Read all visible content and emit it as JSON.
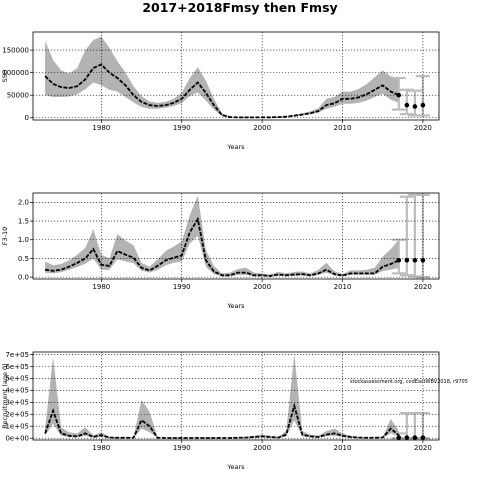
{
  "figure": {
    "title": "2017+2018Fmsy then Fmsy",
    "annotation": "stockassessment.org, codEastWBV2018, r9705"
  },
  "colors": {
    "band": "#b3b3b3",
    "line": "#000000",
    "ghost": "#bdbdbd",
    "grid": "#000000"
  },
  "chart_data": [
    {
      "id": "ssb",
      "type": "line",
      "title": "",
      "xlabel": "Years",
      "ylabel": "SSB",
      "xlim": [
        1971.5,
        2022
      ],
      "ylim": [
        -5000,
        190000
      ],
      "xticks": [
        1980,
        1990,
        2000,
        2010,
        2020
      ],
      "yticks": [
        0,
        50000,
        100000,
        150000
      ],
      "ytick_labels": [
        "0",
        "50000",
        "100000",
        "150000"
      ],
      "grid": true,
      "x": [
        1973,
        1974,
        1975,
        1976,
        1977,
        1978,
        1979,
        1980,
        1981,
        1982,
        1983,
        1984,
        1985,
        1986,
        1987,
        1988,
        1989,
        1990,
        1991,
        1992,
        1993,
        1994,
        1995,
        1996,
        1997,
        1998,
        1999,
        2000,
        2001,
        2002,
        2003,
        2004,
        2005,
        2006,
        2007,
        2008,
        2009,
        2010,
        2011,
        2012,
        2013,
        2014,
        2015,
        2016,
        2017
      ],
      "estimate": [
        92000,
        75000,
        68000,
        66000,
        70000,
        85000,
        110000,
        118000,
        100000,
        88000,
        72000,
        50000,
        35000,
        28000,
        26000,
        28000,
        33000,
        42000,
        62000,
        78000,
        55000,
        28000,
        6000,
        1500,
        800,
        800,
        800,
        800,
        900,
        1500,
        2500,
        4500,
        7000,
        10000,
        15000,
        28000,
        32000,
        42000,
        42000,
        45000,
        52000,
        62000,
        72000,
        58000,
        50000
      ],
      "lower": [
        50000,
        46000,
        46000,
        47000,
        52000,
        63000,
        78000,
        72000,
        62000,
        58000,
        46000,
        34000,
        24000,
        20000,
        20000,
        22000,
        26000,
        32000,
        48000,
        56000,
        38000,
        18000,
        3500,
        900,
        500,
        500,
        500,
        500,
        600,
        1000,
        1800,
        3200,
        5000,
        7500,
        11000,
        20000,
        24000,
        31000,
        31000,
        33000,
        38000,
        46000,
        53000,
        40000,
        33000
      ],
      "upper": [
        170000,
        128000,
        105000,
        98000,
        110000,
        150000,
        172000,
        180000,
        155000,
        125000,
        100000,
        70000,
        48000,
        36000,
        33000,
        35000,
        42000,
        55000,
        88000,
        112000,
        82000,
        42000,
        10000,
        2500,
        1200,
        1200,
        1200,
        1200,
        1300,
        2200,
        3500,
        6500,
        10000,
        14000,
        21000,
        42000,
        46000,
        58000,
        58000,
        64000,
        74000,
        90000,
        105000,
        92000,
        88000
      ],
      "projection": {
        "x": [
          2017,
          2018,
          2019,
          2020
        ],
        "estimate": [
          50000,
          28000,
          25000,
          28000
        ],
        "lower": [
          18000,
          8000,
          5000,
          5000
        ],
        "upper": [
          88000,
          62000,
          60000,
          92000
        ]
      }
    },
    {
      "id": "fbar",
      "type": "line",
      "title": "",
      "xlabel": "Years",
      "ylabel": "F3-10",
      "xlim": [
        1971.5,
        2022
      ],
      "ylim": [
        -0.05,
        2.25
      ],
      "xticks": [
        1980,
        1990,
        2000,
        2010,
        2020
      ],
      "yticks": [
        0.0,
        0.5,
        1.0,
        1.5,
        2.0
      ],
      "ytick_labels": [
        "0.0",
        "0.5",
        "1.0",
        "1.5",
        "2.0"
      ],
      "grid": true,
      "x": [
        1973,
        1974,
        1975,
        1976,
        1977,
        1978,
        1979,
        1980,
        1981,
        1982,
        1983,
        1984,
        1985,
        1986,
        1987,
        1988,
        1989,
        1990,
        1991,
        1992,
        1993,
        1994,
        1995,
        1996,
        1997,
        1998,
        1999,
        2000,
        2001,
        2002,
        2003,
        2004,
        2005,
        2006,
        2007,
        2008,
        2009,
        2010,
        2011,
        2012,
        2013,
        2014,
        2015,
        2016,
        2017
      ],
      "estimate": [
        0.2,
        0.17,
        0.2,
        0.28,
        0.38,
        0.5,
        0.75,
        0.33,
        0.3,
        0.7,
        0.6,
        0.52,
        0.25,
        0.18,
        0.3,
        0.45,
        0.52,
        0.58,
        1.2,
        1.55,
        0.45,
        0.15,
        0.05,
        0.05,
        0.12,
        0.12,
        0.05,
        0.05,
        0.03,
        0.07,
        0.05,
        0.07,
        0.08,
        0.05,
        0.1,
        0.2,
        0.08,
        0.04,
        0.1,
        0.1,
        0.1,
        0.1,
        0.28,
        0.35,
        0.45
      ],
      "lower": [
        0.12,
        0.1,
        0.13,
        0.2,
        0.27,
        0.36,
        0.5,
        0.2,
        0.2,
        0.48,
        0.42,
        0.37,
        0.17,
        0.12,
        0.2,
        0.32,
        0.38,
        0.42,
        0.9,
        1.1,
        0.28,
        0.08,
        0.02,
        0.02,
        0.06,
        0.06,
        0.02,
        0.02,
        0.01,
        0.03,
        0.02,
        0.03,
        0.04,
        0.02,
        0.06,
        0.12,
        0.04,
        0.02,
        0.06,
        0.06,
        0.06,
        0.06,
        0.16,
        0.2,
        0.25
      ],
      "upper": [
        0.42,
        0.32,
        0.35,
        0.45,
        0.6,
        0.78,
        1.28,
        0.6,
        0.5,
        1.15,
        0.98,
        0.85,
        0.38,
        0.28,
        0.48,
        0.7,
        0.82,
        0.95,
        1.65,
        2.18,
        0.72,
        0.3,
        0.1,
        0.12,
        0.22,
        0.25,
        0.12,
        0.1,
        0.07,
        0.14,
        0.1,
        0.14,
        0.15,
        0.1,
        0.2,
        0.38,
        0.16,
        0.08,
        0.18,
        0.18,
        0.2,
        0.25,
        0.55,
        0.75,
        1.0
      ],
      "projection": {
        "x": [
          2017,
          2018,
          2019,
          2020
        ],
        "estimate": [
          0.45,
          0.45,
          0.45,
          0.45
        ],
        "lower": [
          0.1,
          0.05,
          0.02,
          0.0
        ],
        "upper": [
          1.0,
          2.15,
          2.2,
          2.2
        ]
      }
    },
    {
      "id": "recruitment",
      "type": "line",
      "title": "",
      "xlabel": "Years",
      "ylabel": "Recruitment (age 0)",
      "xlim": [
        1971.5,
        2022
      ],
      "ylim": [
        -15000,
        720000
      ],
      "xticks": [
        1980,
        1990,
        2000,
        2010,
        2020
      ],
      "yticks": [
        0,
        100000,
        200000,
        300000,
        400000,
        500000,
        600000,
        700000
      ],
      "ytick_labels": [
        "0e+00",
        "1e+05",
        "2e+05",
        "3e+05",
        "4e+05",
        "5e+05",
        "6e+05",
        "7e+05"
      ],
      "grid": true,
      "x": [
        1973,
        1974,
        1975,
        1976,
        1977,
        1978,
        1979,
        1980,
        1981,
        1982,
        1983,
        1984,
        1985,
        1986,
        1987,
        1988,
        1989,
        1990,
        1991,
        1992,
        1993,
        1994,
        1995,
        1996,
        1997,
        1998,
        1999,
        2000,
        2001,
        2002,
        2003,
        2004,
        2005,
        2006,
        2007,
        2008,
        2009,
        2010,
        2011,
        2012,
        2013,
        2014,
        2015,
        2016,
        2017
      ],
      "estimate": [
        40000,
        230000,
        40000,
        20000,
        15000,
        40000,
        10000,
        25000,
        5000,
        3000,
        3000,
        3000,
        150000,
        100000,
        3000,
        2000,
        2000,
        2000,
        2000,
        2000,
        2000,
        2000,
        2000,
        2000,
        3000,
        5000,
        10000,
        15000,
        10000,
        5000,
        30000,
        270000,
        30000,
        15000,
        10000,
        30000,
        40000,
        20000,
        10000,
        5000,
        3000,
        3000,
        5000,
        80000,
        25000
      ],
      "lower": [
        20000,
        120000,
        20000,
        10000,
        7000,
        20000,
        5000,
        12000,
        2000,
        1000,
        1000,
        1000,
        80000,
        50000,
        1000,
        1000,
        1000,
        1000,
        1000,
        1000,
        1000,
        1000,
        1000,
        1000,
        1500,
        2500,
        5000,
        8000,
        5000,
        2500,
        15000,
        150000,
        15000,
        7000,
        5000,
        15000,
        20000,
        10000,
        5000,
        2000,
        1000,
        1000,
        2000,
        40000,
        12000
      ],
      "upper": [
        80000,
        680000,
        90000,
        50000,
        40000,
        90000,
        25000,
        50000,
        10000,
        6000,
        6000,
        6000,
        320000,
        220000,
        6000,
        4000,
        4000,
        4000,
        4000,
        4000,
        4000,
        4000,
        4000,
        4000,
        6000,
        10000,
        20000,
        30000,
        20000,
        10000,
        60000,
        700000,
        60000,
        30000,
        20000,
        60000,
        80000,
        40000,
        20000,
        10000,
        6000,
        6000,
        10000,
        160000,
        60000
      ],
      "projection": {
        "x": [
          2017,
          2018,
          2019,
          2020
        ],
        "estimate": [
          5000,
          5000,
          5000,
          5000
        ],
        "lower": [
          0,
          0,
          0,
          0
        ],
        "upper": [
          40000,
          210000,
          210000,
          210000
        ]
      }
    }
  ]
}
